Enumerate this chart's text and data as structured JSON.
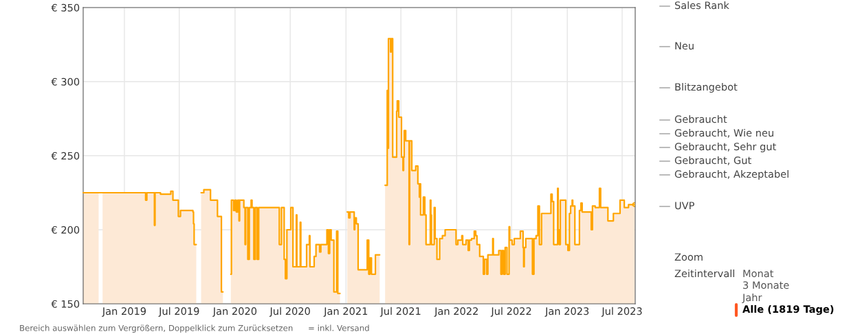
{
  "chart_data": {
    "type": "step",
    "x": [
      "2018-08-18",
      "2018-10-06",
      "2018-10-08",
      "2018-10-21",
      "2019-03-12",
      "2019-03-16",
      "2019-04-10",
      "2019-04-12",
      "2019-04-30",
      "2019-06-03",
      "2019-06-10",
      "2019-06-28",
      "2019-07-05",
      "2019-08-15",
      "2019-08-17",
      "2019-08-19",
      "2019-08-26",
      "2019-09-11",
      "2019-09-20",
      "2019-10-12",
      "2019-11-04",
      "2019-11-17",
      "2019-11-22",
      "2019-12-18",
      "2019-12-20",
      "2019-12-27",
      "2020-01-01",
      "2020-01-05",
      "2020-01-10",
      "2020-01-14",
      "2020-01-16",
      "2020-01-30",
      "2020-02-03",
      "2020-02-05",
      "2020-02-12",
      "2020-02-17",
      "2020-02-23",
      "2020-02-26",
      "2020-03-03",
      "2020-03-08",
      "2020-03-14",
      "2020-03-19",
      "2020-05-26",
      "2020-06-02",
      "2020-06-11",
      "2020-06-15",
      "2020-06-20",
      "2020-07-03",
      "2020-07-10",
      "2020-07-14",
      "2020-07-21",
      "2020-07-23",
      "2020-08-03",
      "2020-08-05",
      "2020-08-24",
      "2020-09-02",
      "2020-09-04",
      "2020-09-18",
      "2020-09-24",
      "2020-10-06",
      "2020-10-10",
      "2020-10-30",
      "2020-11-04",
      "2020-11-08",
      "2020-11-13",
      "2020-11-22",
      "2020-12-01",
      "2020-12-05",
      "2020-12-12",
      "2021-01-05",
      "2021-01-10",
      "2021-01-14",
      "2021-01-28",
      "2021-01-30",
      "2021-02-04",
      "2021-02-10",
      "2021-03-12",
      "2021-03-17",
      "2021-03-21",
      "2021-03-26",
      "2021-04-08",
      "2021-04-22",
      "2021-05-10",
      "2021-05-17",
      "2021-05-19",
      "2021-05-21",
      "2021-05-28",
      "2021-05-30",
      "2021-06-04",
      "2021-06-17",
      "2021-06-19",
      "2021-06-24",
      "2021-07-03",
      "2021-07-08",
      "2021-07-10",
      "2021-07-12",
      "2021-07-17",
      "2021-07-28",
      "2021-07-30",
      "2021-08-06",
      "2021-08-19",
      "2021-08-26",
      "2021-08-31",
      "2021-09-02",
      "2021-09-04",
      "2021-09-13",
      "2021-09-18",
      "2021-09-22",
      "2021-10-06",
      "2021-10-08",
      "2021-10-10",
      "2021-10-19",
      "2021-10-22",
      "2021-10-28",
      "2021-11-06",
      "2021-11-15",
      "2021-11-24",
      "2021-12-30",
      "2022-01-05",
      "2022-01-18",
      "2022-01-21",
      "2022-02-01",
      "2022-02-08",
      "2022-02-12",
      "2022-02-19",
      "2022-02-28",
      "2022-03-05",
      "2022-03-09",
      "2022-03-18",
      "2022-03-30",
      "2022-04-03",
      "2022-04-10",
      "2022-04-14",
      "2022-04-30",
      "2022-05-02",
      "2022-05-20",
      "2022-05-27",
      "2022-05-31",
      "2022-06-05",
      "2022-06-10",
      "2022-06-16",
      "2022-06-23",
      "2022-06-25",
      "2022-07-03",
      "2022-07-10",
      "2022-07-30",
      "2022-08-08",
      "2022-08-10",
      "2022-08-12",
      "2022-08-17",
      "2022-09-08",
      "2022-09-13",
      "2022-09-20",
      "2022-09-26",
      "2022-10-01",
      "2022-10-08",
      "2022-11-08",
      "2022-11-12",
      "2022-11-17",
      "2022-11-30",
      "2022-12-02",
      "2022-12-05",
      "2022-12-09",
      "2022-12-27",
      "2023-01-03",
      "2023-01-08",
      "2023-01-12",
      "2023-01-17",
      "2023-01-19",
      "2023-01-26",
      "2023-02-10",
      "2023-02-15",
      "2023-02-19",
      "2023-03-21",
      "2023-03-25",
      "2023-04-03",
      "2023-04-17",
      "2023-04-21",
      "2023-05-15",
      "2023-06-02",
      "2023-06-24",
      "2023-07-08",
      "2023-07-22",
      "2023-08-11"
    ],
    "series": [
      {
        "type": "area",
        "color": "#fde9d6",
        "values": [
          225,
          225,
          null,
          225,
          220,
          225,
          203,
          225,
          224,
          226,
          220,
          209,
          213,
          212,
          204,
          190,
          null,
          225,
          227,
          220,
          209,
          158,
          null,
          170,
          220,
          213,
          220,
          212,
          220,
          206,
          220,
          215,
          190,
          215,
          180,
          215,
          220,
          215,
          180,
          215,
          180,
          215,
          190,
          215,
          180,
          167,
          200,
          215,
          175,
          175,
          210,
          175,
          205,
          175,
          190,
          196,
          175,
          182,
          190,
          185,
          190,
          200,
          184,
          200,
          193,
          158,
          199,
          157,
          null,
          212,
          208,
          212,
          200,
          208,
          204,
          173,
          193,
          170,
          181,
          170,
          183,
          null,
          230,
          294,
          255,
          329,
          320,
          329,
          249,
          280,
          287,
          276,
          249,
          240,
          249,
          267,
          260,
          190,
          260,
          240,
          243,
          231,
          222,
          231,
          210,
          222,
          210,
          190,
          220,
          210,
          190,
          215,
          194,
          180,
          194,
          196,
          200,
          190,
          193,
          196,
          190,
          193,
          186,
          193,
          194,
          199,
          196,
          190,
          182,
          170,
          180,
          170,
          183,
          194,
          183,
          186,
          170,
          186,
          170,
          188,
          170,
          202,
          193,
          190,
          194,
          199,
          188,
          175,
          188,
          194,
          170,
          194,
          196,
          216,
          190,
          211,
          224,
          219,
          190,
          228,
          200,
          190,
          220,
          190,
          186,
          211,
          216,
          220,
          216,
          190,
          213,
          218,
          212,
          200,
          216,
          215,
          228,
          215,
          206,
          211,
          220,
          215,
          217,
          217
        ]
      },
      {
        "color": "#ffa500",
        "values": [
          225,
          225,
          225,
          225,
          220,
          225,
          203,
          225,
          224,
          226,
          220,
          209,
          213,
          212,
          204,
          190,
          null,
          225,
          227,
          220,
          209,
          158,
          null,
          170,
          220,
          213,
          220,
          212,
          220,
          206,
          220,
          215,
          190,
          215,
          180,
          215,
          220,
          215,
          180,
          215,
          180,
          215,
          190,
          215,
          180,
          167,
          200,
          215,
          175,
          175,
          210,
          175,
          205,
          175,
          190,
          196,
          175,
          182,
          190,
          185,
          190,
          200,
          184,
          200,
          193,
          158,
          199,
          157,
          null,
          212,
          208,
          212,
          200,
          208,
          204,
          173,
          193,
          170,
          181,
          170,
          183,
          null,
          230,
          294,
          255,
          329,
          320,
          329,
          249,
          280,
          287,
          276,
          249,
          240,
          249,
          267,
          260,
          190,
          260,
          240,
          243,
          231,
          222,
          231,
          210,
          222,
          210,
          190,
          220,
          210,
          190,
          215,
          194,
          180,
          194,
          196,
          200,
          190,
          193,
          196,
          190,
          193,
          186,
          193,
          194,
          199,
          196,
          190,
          182,
          170,
          180,
          170,
          183,
          194,
          183,
          186,
          170,
          186,
          170,
          188,
          170,
          202,
          193,
          190,
          194,
          199,
          188,
          175,
          188,
          194,
          170,
          194,
          196,
          216,
          190,
          211,
          224,
          219,
          190,
          228,
          200,
          190,
          220,
          190,
          186,
          211,
          216,
          220,
          216,
          190,
          213,
          218,
          212,
          200,
          216,
          215,
          228,
          215,
          206,
          211,
          220,
          215,
          217,
          217
        ]
      }
    ],
    "xlim": [
      "2018-08-18",
      "2023-08-13"
    ],
    "xticks": [
      {
        "value": "2019-01-01",
        "label": "Jan 2019"
      },
      {
        "value": "2019-07-01",
        "label": "Jul 2019"
      },
      {
        "value": "2020-01-01",
        "label": "Jan 2020"
      },
      {
        "value": "2020-07-01",
        "label": "Jul 2020"
      },
      {
        "value": "2021-01-01",
        "label": "Jan 2021"
      },
      {
        "value": "2021-07-01",
        "label": "Jul 2021"
      },
      {
        "value": "2022-01-01",
        "label": "Jan 2022"
      },
      {
        "value": "2022-07-01",
        "label": "Jul 2022"
      },
      {
        "value": "2023-01-01",
        "label": "Jan 2023"
      },
      {
        "value": "2023-07-01",
        "label": "Jul 2023"
      }
    ],
    "ylim": [
      150,
      350
    ],
    "yticks": [
      {
        "value": 150,
        "label": "€ 150"
      },
      {
        "value": 200,
        "label": "€ 200"
      },
      {
        "value": 250,
        "label": "€ 250"
      },
      {
        "value": 300,
        "label": "€ 300"
      },
      {
        "value": 350,
        "label": "€ 350"
      }
    ],
    "grid": true,
    "annotations": [
      "Sales Rank",
      "Neu",
      "Blitzangebot",
      "Gebraucht",
      "Gebraucht, Wie neu",
      "Gebraucht, Sehr gut",
      "Gebraucht, Gut",
      "Gebraucht, Akzeptabel",
      "UVP",
      "Zoom",
      "Zeitintervall",
      "Monat",
      "3 Monate",
      "Jahr",
      "Alle (1819 Tage)",
      "Bereich auswählen zum Vergrößern, Doppelklick zum Zurücksetzen",
      "= inkl. Versand"
    ]
  }
}
